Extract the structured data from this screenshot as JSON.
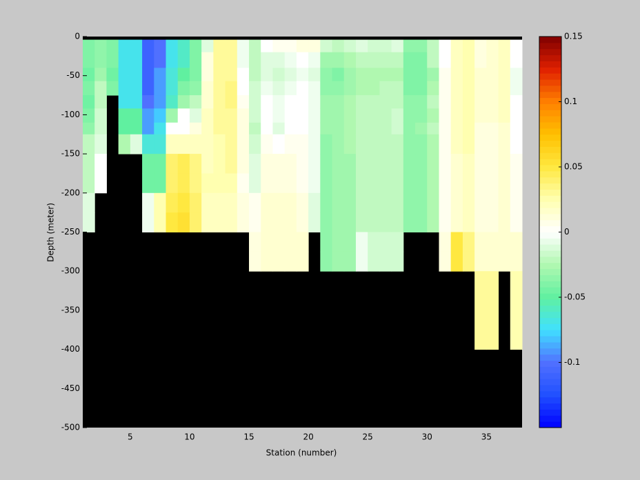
{
  "chart_data": {
    "type": "heatmap",
    "xlabel": "Station (number)",
    "ylabel": "Depth (meter)",
    "xlim": [
      1,
      38
    ],
    "ylim": [
      -500,
      0
    ],
    "xticks": [
      5,
      10,
      15,
      20,
      25,
      30,
      35
    ],
    "yticks": [
      0,
      -50,
      -100,
      -150,
      -200,
      -250,
      -300,
      -350,
      -400,
      -450,
      -500
    ],
    "missing_color": "#000000",
    "x": [
      1,
      2,
      3,
      4,
      5,
      6,
      7,
      8,
      9,
      10,
      11,
      12,
      13,
      14,
      15,
      16,
      17,
      18,
      19,
      20,
      21,
      22,
      23,
      24,
      25,
      26,
      27,
      28,
      29,
      30,
      31,
      32,
      33,
      34,
      35,
      36,
      37,
      38
    ],
    "y": [
      0,
      -4,
      -20,
      -40,
      -57,
      -75,
      -92,
      -110,
      -125,
      -150,
      -175,
      -200,
      -225,
      -250,
      -275,
      -300,
      -400,
      -500
    ],
    "z": [
      [
        null,
        -0.04,
        -0.04,
        -0.045,
        -0.04,
        -0.045,
        -0.04,
        -0.035,
        -0.02,
        -0.02,
        -0.02,
        -0.01,
        -0.01,
        null,
        null,
        null,
        null
      ],
      [
        null,
        -0.035,
        -0.035,
        -0.03,
        -0.02,
        -0.02,
        -0.015,
        -0.015,
        -0.01,
        0,
        0,
        null,
        null,
        null,
        null,
        null,
        null
      ],
      [
        null,
        -0.04,
        -0.04,
        -0.045,
        -0.04,
        null,
        null,
        null,
        null,
        null,
        null,
        null,
        null,
        null,
        null,
        null,
        null
      ],
      [
        null,
        -0.07,
        -0.07,
        -0.07,
        -0.07,
        -0.07,
        -0.05,
        -0.05,
        -0.025,
        null,
        null,
        null,
        null,
        null,
        null,
        null,
        null
      ],
      [
        null,
        -0.07,
        -0.07,
        -0.07,
        -0.07,
        -0.07,
        -0.05,
        -0.05,
        -0.01,
        null,
        null,
        null,
        null,
        null,
        null,
        null,
        null
      ],
      [
        null,
        -0.11,
        -0.11,
        -0.11,
        -0.11,
        -0.1,
        -0.09,
        -0.09,
        -0.065,
        -0.045,
        -0.045,
        -0.005,
        -0.005,
        null,
        null,
        null,
        null
      ],
      [
        null,
        -0.1,
        -0.1,
        -0.09,
        -0.09,
        -0.09,
        -0.08,
        -0.07,
        -0.065,
        -0.045,
        -0.045,
        0.025,
        0.025,
        null,
        null,
        null,
        null
      ],
      [
        null,
        -0.07,
        -0.07,
        -0.065,
        -0.065,
        -0.06,
        -0.03,
        0,
        0.02,
        0.04,
        0.04,
        0.045,
        0.05,
        null,
        null,
        null,
        null
      ],
      [
        null,
        -0.06,
        -0.06,
        -0.05,
        -0.04,
        -0.03,
        0,
        0,
        0.02,
        0.045,
        0.045,
        0.05,
        0.055,
        null,
        null,
        null,
        null
      ],
      [
        null,
        -0.04,
        -0.04,
        -0.04,
        -0.035,
        -0.02,
        -0.01,
        0.01,
        0.02,
        0.035,
        0.035,
        0.04,
        0.04,
        null,
        null,
        null,
        null
      ],
      [
        null,
        -0.01,
        0.01,
        0.01,
        0.015,
        0.015,
        0.02,
        0.02,
        0.02,
        0.02,
        0.025,
        0.02,
        0.02,
        null,
        null,
        null,
        null
      ],
      [
        null,
        0.03,
        0.03,
        0.03,
        0.03,
        0.03,
        0.03,
        0.03,
        0.025,
        0.025,
        0.025,
        0.02,
        0.02,
        null,
        null,
        null,
        null
      ],
      [
        null,
        0.03,
        0.03,
        0.03,
        0.035,
        0.035,
        0.03,
        0.03,
        0.03,
        0.03,
        0.025,
        0.02,
        0.02,
        null,
        null,
        null,
        null
      ],
      [
        null,
        -0.005,
        -0.005,
        0,
        0,
        0.005,
        0.01,
        0.01,
        0.01,
        0.01,
        0.005,
        0.01,
        0.01,
        null,
        null,
        null,
        null
      ],
      [
        null,
        -0.02,
        -0.02,
        -0.02,
        -0.015,
        -0.015,
        -0.015,
        -0.02,
        -0.015,
        -0.01,
        -0.01,
        0.005,
        0.005,
        0.01,
        0.01,
        null,
        null
      ],
      [
        null,
        0,
        -0.01,
        -0.01,
        -0.005,
        0,
        0,
        0,
        0.005,
        0.01,
        0.01,
        0.015,
        0.015,
        0.015,
        0.015,
        null,
        null
      ],
      [
        null,
        0.005,
        -0.01,
        -0.015,
        -0.01,
        -0.005,
        -0.005,
        -0.01,
        0,
        0.01,
        0.01,
        0.015,
        0.015,
        0.015,
        0.015,
        null,
        null
      ],
      [
        null,
        0.005,
        -0.005,
        -0.01,
        -0.005,
        0,
        0,
        0,
        0.005,
        0.01,
        0.01,
        0.015,
        0.015,
        0.015,
        0.015,
        null,
        null
      ],
      [
        null,
        0.01,
        0,
        -0.005,
        0,
        0,
        0,
        0,
        0.005,
        0.005,
        0.005,
        0.01,
        0.01,
        0.015,
        0.015,
        null,
        null
      ],
      [
        null,
        0.01,
        -0.005,
        -0.01,
        -0.005,
        -0.005,
        -0.005,
        -0.005,
        -0.005,
        -0.005,
        -0.005,
        -0.01,
        -0.01,
        null,
        null,
        null,
        null
      ],
      [
        null,
        -0.015,
        -0.03,
        -0.035,
        -0.035,
        -0.03,
        -0.03,
        -0.03,
        -0.035,
        -0.035,
        -0.035,
        -0.035,
        -0.035,
        -0.035,
        -0.035,
        null,
        null
      ],
      [
        null,
        -0.02,
        -0.03,
        -0.04,
        -0.035,
        -0.03,
        -0.03,
        -0.03,
        -0.03,
        -0.03,
        -0.03,
        -0.03,
        -0.03,
        -0.03,
        -0.03,
        null,
        null
      ],
      [
        null,
        -0.015,
        -0.025,
        -0.03,
        -0.03,
        -0.025,
        -0.025,
        -0.025,
        -0.025,
        -0.03,
        -0.03,
        -0.03,
        -0.03,
        -0.03,
        -0.03,
        null,
        null
      ],
      [
        null,
        -0.01,
        -0.02,
        -0.025,
        -0.025,
        -0.02,
        -0.02,
        -0.02,
        -0.02,
        -0.02,
        -0.02,
        -0.02,
        -0.02,
        -0.005,
        -0.005,
        null,
        null
      ],
      [
        null,
        -0.015,
        -0.02,
        -0.025,
        -0.025,
        -0.02,
        -0.02,
        -0.02,
        -0.02,
        -0.02,
        -0.02,
        -0.02,
        -0.02,
        -0.015,
        -0.015,
        null,
        null
      ],
      [
        null,
        -0.015,
        -0.02,
        -0.025,
        -0.02,
        -0.02,
        -0.02,
        -0.02,
        -0.02,
        -0.02,
        -0.02,
        -0.02,
        -0.02,
        -0.015,
        -0.015,
        null,
        null
      ],
      [
        null,
        -0.01,
        -0.02,
        -0.025,
        -0.02,
        -0.02,
        -0.015,
        -0.015,
        -0.02,
        -0.02,
        -0.02,
        -0.02,
        -0.02,
        -0.015,
        -0.015,
        null,
        null
      ],
      [
        null,
        -0.035,
        -0.04,
        -0.04,
        -0.04,
        -0.035,
        -0.035,
        -0.035,
        -0.035,
        -0.035,
        -0.035,
        -0.035,
        -0.035,
        null,
        null,
        null,
        null
      ],
      [
        null,
        -0.035,
        -0.04,
        -0.04,
        -0.04,
        -0.035,
        -0.035,
        -0.03,
        -0.035,
        -0.035,
        -0.035,
        -0.035,
        -0.035,
        null,
        null,
        null,
        null
      ],
      [
        null,
        -0.02,
        -0.02,
        -0.03,
        -0.025,
        -0.02,
        -0.025,
        -0.02,
        -0.025,
        -0.025,
        -0.025,
        -0.025,
        -0.025,
        null,
        null,
        null,
        null
      ],
      [
        null,
        0,
        0,
        0.005,
        0.005,
        0.005,
        0.005,
        0.005,
        0.005,
        0.005,
        0.005,
        0.005,
        0.005,
        0.01,
        0.01,
        null,
        null
      ],
      [
        null,
        0.02,
        0.02,
        0.02,
        0.02,
        0.02,
        0.02,
        0.02,
        0.02,
        0.015,
        0.015,
        0.015,
        0.015,
        0.05,
        0.05,
        null,
        null
      ],
      [
        null,
        0.025,
        0.025,
        0.025,
        0.025,
        0.025,
        0.025,
        0.025,
        0.025,
        0.02,
        0.02,
        0.02,
        0.02,
        0.035,
        0.035,
        null,
        null
      ],
      [
        null,
        0.01,
        0.01,
        0.015,
        0.015,
        0.015,
        0.015,
        0.01,
        0.01,
        0.01,
        0.01,
        0.01,
        0.01,
        0.015,
        0.015,
        0.03,
        null
      ],
      [
        null,
        0.015,
        0.015,
        0.015,
        0.015,
        0.015,
        0.015,
        0.01,
        0.01,
        0.01,
        0.01,
        0.01,
        0.01,
        0.015,
        0.015,
        0.03,
        null
      ],
      [
        null,
        0.02,
        0.02,
        0.02,
        0.02,
        0.02,
        0.02,
        0.015,
        0.015,
        0.015,
        0.015,
        0.015,
        0.015,
        0.015,
        0.015,
        null,
        null
      ],
      [
        null,
        0,
        0,
        -0.005,
        -0.005,
        0,
        0,
        0,
        0,
        0.005,
        0.005,
        0.005,
        0.005,
        0.015,
        0.015,
        0.025,
        null
      ]
    ],
    "clim": [
      -0.15,
      0.15
    ],
    "cticks": [
      -0.1,
      -0.05,
      0,
      0.05,
      0.1,
      0.15
    ],
    "colormap": [
      "#0000ff",
      "#2050ff",
      "#5070ff",
      "#40e0ff",
      "#60f0a0",
      "#b0f8b0",
      "#ffffff",
      "#ffffb0",
      "#ffe840",
      "#ffc000",
      "#ff8000",
      "#e02000",
      "#800000"
    ]
  }
}
